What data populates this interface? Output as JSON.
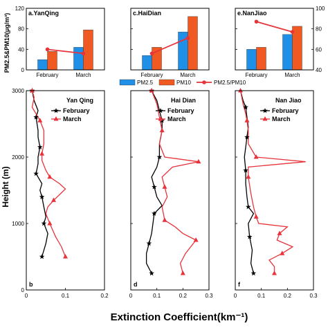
{
  "figure": {
    "top_ylabel": "PM2.5&PM10(μg/m³)",
    "top_right_tick_labels": [
      "40",
      "60",
      "80",
      "100"
    ],
    "bottom_ylabel": "Height (m)",
    "xlabel": "Extinction Coefficient(km⁻¹)",
    "legend": {
      "pm25": "PM2.5",
      "pm10": "PM10",
      "ratio": "PM2.5/PM10"
    },
    "colors": {
      "pm25": "#1f8fe8",
      "pm10": "#f05a22",
      "ratio": "#e8333b",
      "february": "#000000",
      "march": "#e8333b"
    }
  },
  "chart_data": [
    {
      "type": "bar",
      "panel_label": "a.YanQing",
      "categories": [
        "February",
        "March"
      ],
      "series": [
        {
          "name": "PM2.5",
          "values": [
            20,
            44
          ]
        },
        {
          "name": "PM10",
          "values": [
            36,
            78
          ]
        },
        {
          "name": "PM2.5/PM10",
          "values": [
            60,
            56
          ],
          "axis": "right"
        }
      ],
      "ylim": [
        0,
        120
      ],
      "y_ticks": [
        0,
        40,
        80,
        120
      ],
      "y2lim": [
        40,
        100
      ]
    },
    {
      "type": "bar",
      "panel_label": "c.HaiDian",
      "categories": [
        "February",
        "March"
      ],
      "series": [
        {
          "name": "PM2.5",
          "values": [
            28,
            74
          ]
        },
        {
          "name": "PM10",
          "values": [
            44,
            104
          ]
        },
        {
          "name": "PM2.5/PM10",
          "values": [
            56,
            71
          ],
          "axis": "right"
        }
      ],
      "ylim": [
        0,
        120
      ],
      "y_ticks": [
        0,
        40,
        80,
        120
      ],
      "y2lim": [
        40,
        100
      ]
    },
    {
      "type": "bar",
      "panel_label": "e.NanJiao",
      "categories": [
        "February",
        "March"
      ],
      "series": [
        {
          "name": "PM2.5",
          "values": [
            40,
            69
          ]
        },
        {
          "name": "PM10",
          "values": [
            44,
            85
          ]
        },
        {
          "name": "PM2.5/PM10",
          "values": [
            87,
            77
          ],
          "axis": "right"
        }
      ],
      "ylim": [
        0,
        120
      ],
      "y_ticks": [
        0,
        40,
        80,
        120
      ],
      "y2lim": [
        40,
        100
      ]
    },
    {
      "type": "line",
      "panel_label": "b",
      "title": "Yan Qing",
      "xlim": [
        0,
        0.2
      ],
      "x_ticks": [
        "0",
        "0.1",
        "0.2"
      ],
      "ylim": [
        0,
        3000
      ],
      "y_ticks": [
        "0",
        "1000",
        "2000",
        "3000"
      ],
      "series": [
        {
          "name": "February",
          "points": [
            [
              0.04,
              500
            ],
            [
              0.05,
              700
            ],
            [
              0.055,
              850
            ],
            [
              0.045,
              1000
            ],
            [
              0.05,
              1100
            ],
            [
              0.045,
              1250
            ],
            [
              0.04,
              1400
            ],
            [
              0.035,
              1500
            ],
            [
              0.04,
              1600
            ],
            [
              0.025,
              1750
            ],
            [
              0.03,
              1900
            ],
            [
              0.03,
              2000
            ],
            [
              0.035,
              2150
            ],
            [
              0.03,
              2300
            ],
            [
              0.03,
              2400
            ],
            [
              0.025,
              2600
            ],
            [
              0.03,
              2700
            ],
            [
              0.02,
              2850
            ],
            [
              0.015,
              3000
            ]
          ]
        },
        {
          "name": "March",
          "points": [
            [
              0.1,
              500
            ],
            [
              0.09,
              650
            ],
            [
              0.075,
              800
            ],
            [
              0.06,
              1000
            ],
            [
              0.05,
              1150
            ],
            [
              0.055,
              1250
            ],
            [
              0.07,
              1350
            ],
            [
              0.1,
              1520
            ],
            [
              0.085,
              1600
            ],
            [
              0.06,
              1700
            ],
            [
              0.05,
              1800
            ],
            [
              0.04,
              1950
            ],
            [
              0.04,
              2050
            ],
            [
              0.045,
              2200
            ],
            [
              0.045,
              2400
            ],
            [
              0.035,
              2550
            ],
            [
              0.015,
              2750
            ],
            [
              0.02,
              2900
            ],
            [
              0.015,
              3000
            ]
          ]
        }
      ]
    },
    {
      "type": "line",
      "panel_label": "d",
      "title": "Hai Dian",
      "xlim": [
        0,
        0.3
      ],
      "x_ticks": [
        "0",
        "0.1",
        "0.2",
        "0.3"
      ],
      "ylim": [
        0,
        3000
      ],
      "y_ticks": [
        "0",
        "1000",
        "2000",
        "3000"
      ],
      "series": [
        {
          "name": "February",
          "points": [
            [
              0.08,
              250
            ],
            [
              0.06,
              400
            ],
            [
              0.06,
              550
            ],
            [
              0.07,
              700
            ],
            [
              0.08,
              850
            ],
            [
              0.085,
              1000
            ],
            [
              0.09,
              1150
            ],
            [
              0.12,
              1270
            ],
            [
              0.1,
              1400
            ],
            [
              0.09,
              1550
            ],
            [
              0.08,
              1700
            ],
            [
              0.1,
              1850
            ],
            [
              0.11,
              2000
            ],
            [
              0.11,
              2200
            ],
            [
              0.12,
              2400
            ],
            [
              0.12,
              2550
            ],
            [
              0.11,
              2700
            ],
            [
              0.1,
              2850
            ],
            [
              0.08,
              3000
            ]
          ]
        },
        {
          "name": "March",
          "points": [
            [
              0.2,
              250
            ],
            [
              0.19,
              400
            ],
            [
              0.21,
              550
            ],
            [
              0.25,
              750
            ],
            [
              0.2,
              850
            ],
            [
              0.17,
              950
            ],
            [
              0.13,
              1050
            ],
            [
              0.12,
              1250
            ],
            [
              0.14,
              1400
            ],
            [
              0.13,
              1550
            ],
            [
              0.12,
              1700
            ],
            [
              0.16,
              1850
            ],
            [
              0.26,
              1930
            ],
            [
              0.13,
              2000
            ],
            [
              0.11,
              2200
            ],
            [
              0.12,
              2400
            ],
            [
              0.11,
              2600
            ],
            [
              0.1,
              2800
            ],
            [
              0.08,
              3000
            ]
          ]
        }
      ]
    },
    {
      "type": "line",
      "panel_label": "f",
      "title": "Nan Jiao",
      "xlim": [
        0,
        0.3
      ],
      "x_ticks": [
        "0",
        "0.1",
        "0.2",
        "0.3"
      ],
      "ylim": [
        0,
        3000
      ],
      "y_ticks": [
        "0",
        "1000",
        "2000",
        "3000"
      ],
      "series": [
        {
          "name": "February",
          "points": [
            [
              0.07,
              250
            ],
            [
              0.06,
              400
            ],
            [
              0.065,
              600
            ],
            [
              0.055,
              800
            ],
            [
              0.05,
              1000
            ],
            [
              0.07,
              1150
            ],
            [
              0.05,
              1250
            ],
            [
              0.045,
              1400
            ],
            [
              0.04,
              1600
            ],
            [
              0.04,
              1800
            ],
            [
              0.035,
              2000
            ],
            [
              0.04,
              2150
            ],
            [
              0.045,
              2300
            ],
            [
              0.05,
              2450
            ],
            [
              0.045,
              2600
            ],
            [
              0.04,
              2750
            ],
            [
              0.03,
              2850
            ],
            [
              0.02,
              3000
            ]
          ]
        },
        {
          "name": "March",
          "points": [
            [
              0.15,
              250
            ],
            [
              0.15,
              350
            ],
            [
              0.13,
              450
            ],
            [
              0.18,
              550
            ],
            [
              0.22,
              650
            ],
            [
              0.16,
              750
            ],
            [
              0.17,
              850
            ],
            [
              0.2,
              950
            ],
            [
              0.09,
              1000
            ],
            [
              0.08,
              1100
            ],
            [
              0.07,
              1250
            ],
            [
              0.06,
              1450
            ],
            [
              0.05,
              1700
            ],
            [
              0.05,
              1850
            ],
            [
              0.27,
              1930
            ],
            [
              0.08,
              2000
            ],
            [
              0.05,
              2200
            ],
            [
              0.05,
              2400
            ],
            [
              0.045,
              2550
            ],
            [
              0.04,
              2650
            ],
            [
              0.03,
              2800
            ],
            [
              0.02,
              3000
            ]
          ]
        }
      ]
    }
  ]
}
